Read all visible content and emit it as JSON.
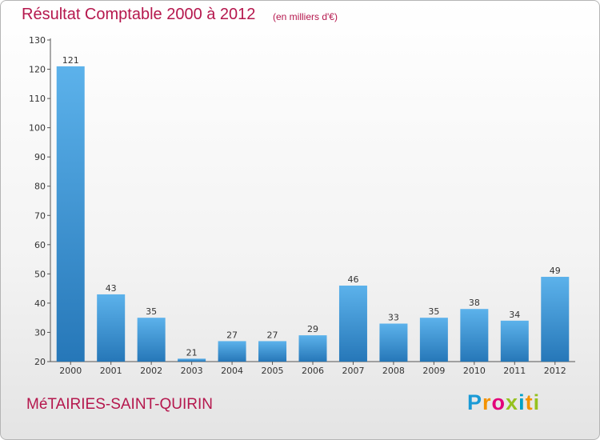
{
  "header": {
    "title": "Résultat Comptable 2000 à 2012",
    "subtitle": "(en milliers d'€)"
  },
  "footer": {
    "commune": "MéTAIRIES-SAINT-QUIRIN",
    "logo": "Proxiti"
  },
  "colors": {
    "title": "#b5174d",
    "bar_top": "#5cb2eb",
    "bar_bottom": "#2677b8"
  },
  "chart_data": {
    "type": "bar",
    "title": "Résultat Comptable 2000 à 2012",
    "subtitle": "(en milliers d'€)",
    "categories": [
      "2000",
      "2001",
      "2002",
      "2003",
      "2004",
      "2005",
      "2006",
      "2007",
      "2008",
      "2009",
      "2010",
      "2011",
      "2012"
    ],
    "values": [
      121,
      43,
      35,
      21,
      27,
      27,
      29,
      46,
      33,
      35,
      38,
      34,
      49
    ],
    "ylim": [
      20,
      130
    ],
    "yticks": [
      20,
      30,
      40,
      50,
      60,
      70,
      80,
      90,
      100,
      110,
      120,
      130
    ],
    "grid": false,
    "legend": "none"
  }
}
